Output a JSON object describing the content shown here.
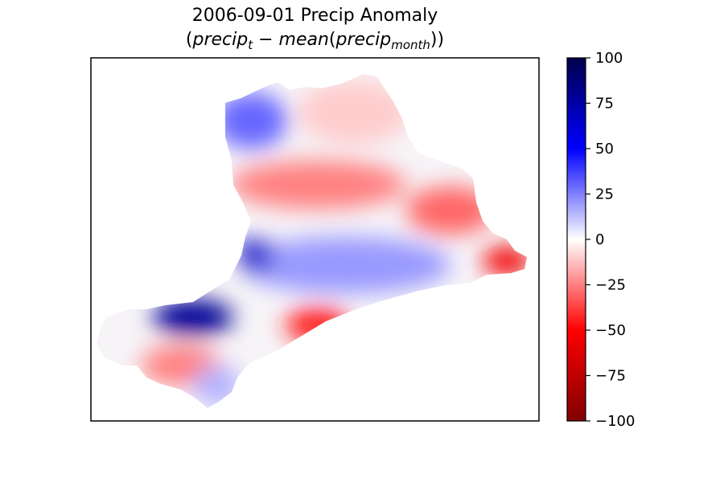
{
  "chart_data": {
    "type": "heatmap",
    "title_line1": "2006-09-01 Precip Anomaly",
    "title_line2": {
      "open": "(",
      "var": "precip",
      "sub_t": "t",
      "minus": " − ",
      "mean": "mean",
      "paren_open": "(",
      "var2": "precip",
      "sub_month": "month",
      "close": "))"
    },
    "colormap": "seismic_r",
    "colorbar": {
      "vmin": -100,
      "vmax": 100,
      "ticks": [
        100,
        75,
        50,
        25,
        0,
        -25,
        -50,
        -75,
        -100
      ],
      "tick_labels": [
        "100",
        "75",
        "50",
        "25",
        "0",
        "−25",
        "−50",
        "−75",
        "−100"
      ],
      "stops": [
        {
          "value": 100,
          "color": "#00004c"
        },
        {
          "value": 50,
          "color": "#0000ff"
        },
        {
          "value": 0,
          "color": "#ffffff"
        },
        {
          "value": -50,
          "color": "#ff0000"
        },
        {
          "value": -100,
          "color": "#800000"
        }
      ]
    },
    "axes_ticks_visible": false,
    "grid": false,
    "regions": [
      {
        "desc": "north-west blue patch",
        "value": 30
      },
      {
        "desc": "north-east pale",
        "value": -10
      },
      {
        "desc": "central red band",
        "value": -25
      },
      {
        "desc": "east red band",
        "value": -30
      },
      {
        "desc": "central blue band",
        "value": 20
      },
      {
        "desc": "strong blue hotspot",
        "value": 65
      },
      {
        "desc": "west blue core",
        "value": 80
      },
      {
        "desc": "south-east red strip",
        "value": -45
      },
      {
        "desc": "far-east tip red",
        "value": -55
      },
      {
        "desc": "south-west red",
        "value": -25
      },
      {
        "desc": "south pale blue",
        "value": 15
      }
    ]
  }
}
